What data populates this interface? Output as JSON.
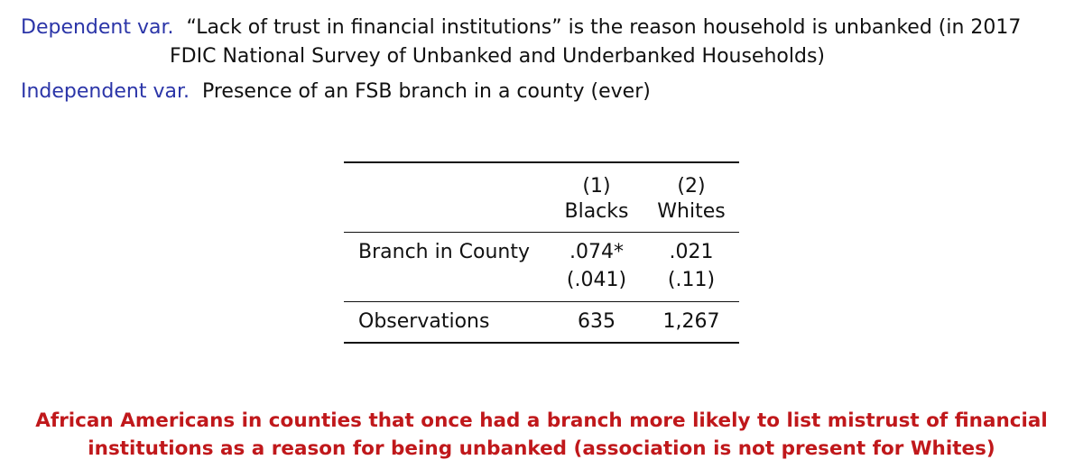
{
  "header": {
    "dep_label": "Dependent var.",
    "dep_text_1": "“Lack of trust in financial institutions” is the reason household is unbanked (in 2017",
    "dep_text_2": "FDIC National Survey of Unbanked and Underbanked Households)",
    "indep_label": "Independent var.",
    "indep_text": "Presence of an FSB branch in a county (ever)"
  },
  "table": {
    "columns": [
      {
        "number": "(1)",
        "group": "Blacks"
      },
      {
        "number": "(2)",
        "group": "Whites"
      }
    ],
    "rows": [
      {
        "label": "Branch in County",
        "values": [
          ".074*",
          ".021"
        ],
        "se": [
          "(.041)",
          "(.11)"
        ]
      },
      {
        "label": "Observations",
        "values": [
          "635",
          "1,267"
        ]
      }
    ]
  },
  "conclusion": {
    "line1": "African Americans in counties that once had a branch more likely to list mistrust of financial",
    "line2": "institutions as a reason for being unbanked (association is not present for Whites)"
  },
  "colors": {
    "label": "#2b35a8",
    "conclusion": "#c0181b"
  }
}
